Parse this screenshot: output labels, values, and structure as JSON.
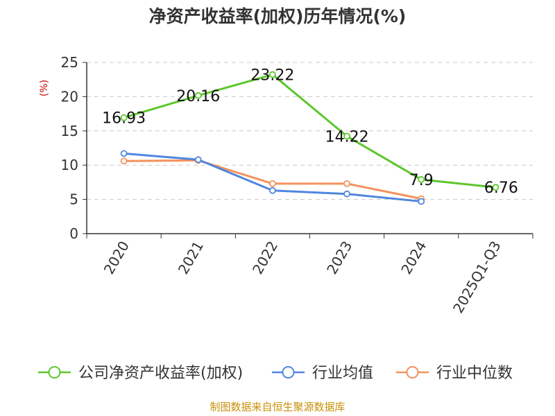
{
  "chart_data": {
    "type": "line",
    "title": "净资产收益率(加权)历年情况(%)",
    "ylabel": "(%)",
    "xlabel": "",
    "categories": [
      "2020",
      "2021",
      "2022",
      "2023",
      "2024",
      "2025Q1-Q3"
    ],
    "ylim": [
      0,
      25
    ],
    "yticks": [
      0,
      5,
      10,
      15,
      20,
      25
    ],
    "grid": "horizontal dashed",
    "legend_position": "bottom",
    "series": [
      {
        "name": "公司净资产收益率(加权)",
        "color": "#5cc62b",
        "values": [
          16.93,
          20.16,
          23.22,
          14.22,
          7.9,
          6.76
        ],
        "labels": [
          "16.93",
          "20.16",
          "23.22",
          "14.22",
          "7.9",
          "6.76"
        ]
      },
      {
        "name": "行业均值",
        "color": "#4f86e0",
        "values": [
          11.7,
          10.8,
          6.3,
          5.8,
          4.7,
          null
        ]
      },
      {
        "name": "行业中位数",
        "color": "#f4915c",
        "values": [
          10.6,
          10.7,
          7.3,
          7.3,
          5.1,
          null
        ]
      }
    ]
  },
  "source_note": "制图数据来自恒生聚源数据库"
}
